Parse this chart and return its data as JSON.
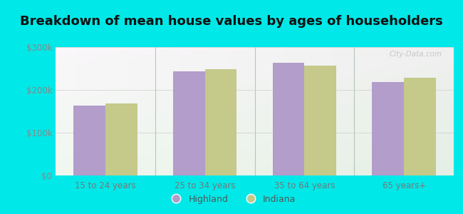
{
  "title": "Breakdown of mean house values by ages of householders",
  "categories": [
    "15 to 24 years",
    "25 to 34 years",
    "35 to 64 years",
    "65 years+"
  ],
  "highland_values": [
    163000,
    243000,
    263000,
    218000
  ],
  "indiana_values": [
    168000,
    248000,
    257000,
    228000
  ],
  "highland_color": "#b39dca",
  "indiana_color": "#c5c98a",
  "background_outer": "#00e8e8",
  "ylim": [
    0,
    300000
  ],
  "yticks": [
    0,
    100000,
    200000,
    300000
  ],
  "ytick_labels": [
    "$0",
    "$100k",
    "$200k",
    "$300k"
  ],
  "legend_labels": [
    "Highland",
    "Indiana"
  ],
  "title_fontsize": 13,
  "bar_width": 0.32
}
